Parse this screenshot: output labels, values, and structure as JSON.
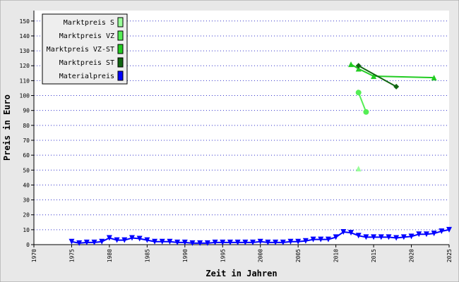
{
  "chart_data": {
    "type": "line",
    "x_label": "Zeit in Jahren",
    "y_label": "Preis in Euro",
    "xlim": [
      1970,
      2025
    ],
    "xticks": [
      1970,
      1975,
      1980,
      1985,
      1990,
      1995,
      2000,
      2005,
      2010,
      2015,
      2020,
      2025
    ],
    "ylim": [
      0,
      157
    ],
    "yticks": [
      0,
      10,
      20,
      30,
      40,
      50,
      60,
      70,
      80,
      90,
      100,
      110,
      120,
      130,
      140,
      150
    ],
    "grid": true,
    "legend": "upper left",
    "series": [
      {
        "name": "Marktpreis S",
        "color": "#99ff99",
        "marker": "triangle-up",
        "x": [
          2013
        ],
        "values": [
          51
        ]
      },
      {
        "name": "Marktpreis VZ",
        "color": "#55ee55",
        "marker": "circle",
        "x": [
          2013,
          2014
        ],
        "values": [
          102,
          89
        ]
      },
      {
        "name": "Marktpreis VZ-ST",
        "color": "#22cc22",
        "marker": "triangle-up",
        "x": [
          2012,
          2013,
          2015,
          2023
        ],
        "values": [
          121,
          118,
          113,
          112
        ]
      },
      {
        "name": "Marktpreis ST",
        "color": "#116611",
        "marker": "diamond",
        "x": [
          2013,
          2018
        ],
        "values": [
          120,
          106
        ]
      },
      {
        "name": "Materialpreis",
        "color": "#0000ff",
        "marker": "triangle-down",
        "x": [
          1975,
          1976,
          1977,
          1978,
          1979,
          1980,
          1981,
          1982,
          1983,
          1984,
          1985,
          1986,
          1987,
          1988,
          1989,
          1990,
          1991,
          1992,
          1993,
          1994,
          1995,
          1996,
          1997,
          1998,
          1999,
          2000,
          2001,
          2002,
          2003,
          2004,
          2005,
          2006,
          2007,
          2008,
          2009,
          2010,
          2011,
          2012,
          2013,
          2014,
          2015,
          2016,
          2017,
          2018,
          2019,
          2020,
          2021,
          2022,
          2023,
          2024,
          2025
        ],
        "values": [
          2,
          1,
          1.5,
          1.5,
          2,
          4.5,
          3,
          3,
          4.5,
          4,
          3,
          2,
          2,
          2,
          1.5,
          1.5,
          1,
          1,
          1,
          1.5,
          1.5,
          1.5,
          1.5,
          1.5,
          1.5,
          2,
          1.5,
          1.5,
          1.5,
          2,
          2,
          2.5,
          3.5,
          3.5,
          3.5,
          5,
          8.5,
          8,
          6,
          5,
          5,
          5,
          5,
          4.5,
          5,
          5.5,
          7,
          7,
          7.5,
          9,
          10
        ]
      }
    ]
  }
}
